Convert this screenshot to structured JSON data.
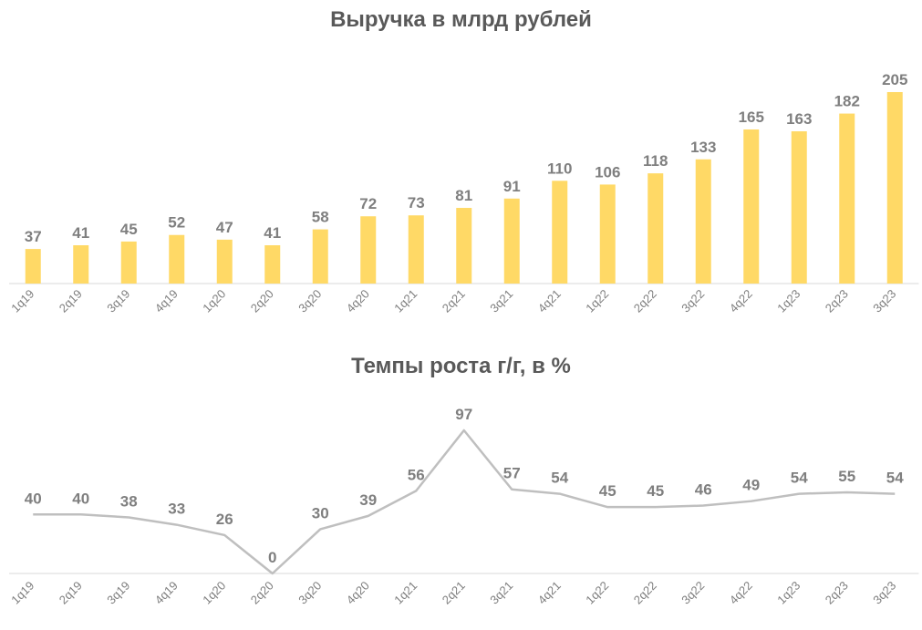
{
  "chart_data": [
    {
      "type": "bar",
      "title": "Выручка в млрд рублей",
      "color": "#FFD966",
      "categories": [
        "1q19",
        "2q19",
        "3q19",
        "4q19",
        "1q20",
        "2q20",
        "3q20",
        "4q20",
        "1q21",
        "2q21",
        "3q21",
        "4q21",
        "1q22",
        "2q22",
        "3q22",
        "4q22",
        "1q23",
        "2q23",
        "3q23"
      ],
      "values": [
        37,
        41,
        45,
        52,
        47,
        41,
        58,
        72,
        73,
        81,
        91,
        110,
        106,
        118,
        133,
        165,
        163,
        182,
        205
      ],
      "data_labels": true
    },
    {
      "type": "line",
      "title": "Темпы роста г/г, в %",
      "color": "#BFBFBF",
      "categories": [
        "1q19",
        "2q19",
        "3q19",
        "4q19",
        "1q20",
        "2q20",
        "3q20",
        "4q20",
        "1q21",
        "2q21",
        "3q21",
        "4q21",
        "1q22",
        "2q22",
        "3q22",
        "4q22",
        "1q23",
        "2q23",
        "3q23"
      ],
      "values": [
        40,
        40,
        38,
        33,
        26,
        0,
        30,
        39,
        56,
        97,
        57,
        54,
        45,
        45,
        46,
        49,
        54,
        55,
        54
      ],
      "data_labels": true
    }
  ]
}
